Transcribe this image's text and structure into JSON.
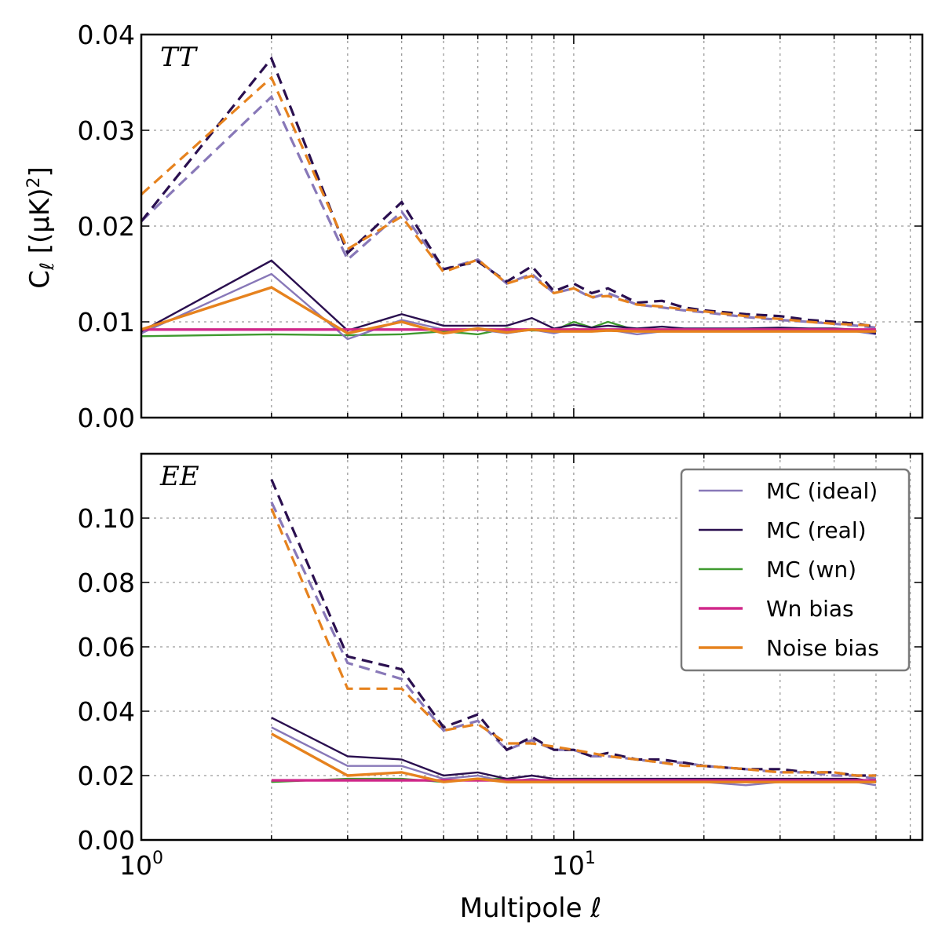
{
  "chart_data": [
    {
      "type": "line",
      "panel_label": "TT",
      "xlabel": "",
      "ylabel": "C_ℓ [(μK)²]",
      "xscale": "log",
      "xlim": [
        1,
        64
      ],
      "ylim": [
        0,
        0.04
      ],
      "yticks": [
        "0.00",
        "0.01",
        "0.02",
        "0.03",
        "0.04"
      ],
      "grid": true,
      "series": [
        {
          "key": "mc_ideal_mean",
          "x": [
            1,
            2,
            3,
            4,
            5,
            6,
            7,
            8,
            9,
            10,
            11,
            12,
            14,
            16,
            18,
            20,
            25,
            30,
            35,
            40,
            45,
            50
          ],
          "values": [
            0.0205,
            0.0335,
            0.0165,
            0.0215,
            0.0155,
            0.0165,
            0.014,
            0.015,
            0.013,
            0.0135,
            0.0125,
            0.013,
            0.0118,
            0.0115,
            0.0112,
            0.011,
            0.0105,
            0.0102,
            0.01,
            0.0098,
            0.0096,
            0.0094
          ]
        },
        {
          "key": "mc_real_mean",
          "x": [
            1,
            2,
            3,
            4,
            5,
            6,
            7,
            8,
            9,
            10,
            11,
            12,
            14,
            16,
            18,
            20,
            25,
            30,
            35,
            40,
            45,
            50
          ],
          "values": [
            0.0205,
            0.0375,
            0.0172,
            0.0225,
            0.0155,
            0.0163,
            0.0142,
            0.0158,
            0.0132,
            0.014,
            0.013,
            0.0135,
            0.012,
            0.0122,
            0.0115,
            0.0112,
            0.0108,
            0.0106,
            0.0102,
            0.01,
            0.0098,
            0.0095
          ]
        },
        {
          "key": "noise_mean",
          "x": [
            1,
            2,
            3,
            4,
            5,
            6,
            7,
            8,
            9,
            10,
            11,
            12,
            14,
            16,
            18,
            20,
            25,
            30,
            35,
            40,
            45,
            50
          ],
          "values": [
            0.0233,
            0.0355,
            0.0176,
            0.021,
            0.0152,
            0.0165,
            0.014,
            0.0148,
            0.013,
            0.0135,
            0.0126,
            0.0127,
            0.0118,
            0.0116,
            0.0113,
            0.0111,
            0.0106,
            0.0103,
            0.01,
            0.0098,
            0.0097,
            0.0096
          ]
        },
        {
          "key": "mc_ideal",
          "x": [
            1,
            2,
            3,
            4,
            5,
            6,
            7,
            8,
            9,
            10,
            11,
            12,
            14,
            16,
            18,
            20,
            25,
            30,
            35,
            40,
            45,
            50
          ],
          "values": [
            0.0088,
            0.015,
            0.0082,
            0.0102,
            0.0092,
            0.0092,
            0.0088,
            0.0092,
            0.0088,
            0.0093,
            0.009,
            0.0092,
            0.0087,
            0.009,
            0.009,
            0.0091,
            0.009,
            0.0092,
            0.009,
            0.0091,
            0.009,
            0.0087
          ]
        },
        {
          "key": "mc_real",
          "x": [
            1,
            2,
            3,
            4,
            5,
            6,
            7,
            8,
            9,
            10,
            11,
            12,
            14,
            16,
            18,
            20,
            25,
            30,
            35,
            40,
            45,
            50
          ],
          "values": [
            0.009,
            0.0164,
            0.0091,
            0.0108,
            0.0096,
            0.0096,
            0.0096,
            0.0104,
            0.0093,
            0.0097,
            0.0094,
            0.0096,
            0.0093,
            0.0095,
            0.0093,
            0.0093,
            0.0093,
            0.0094,
            0.0093,
            0.0093,
            0.0092,
            0.0088
          ]
        },
        {
          "key": "mc_wn",
          "x": [
            1,
            2,
            3,
            4,
            5,
            6,
            7,
            8,
            9,
            10,
            11,
            12,
            14,
            16,
            18,
            20,
            25,
            30,
            35,
            40,
            45,
            50
          ],
          "values": [
            0.0085,
            0.0087,
            0.0086,
            0.0087,
            0.009,
            0.0087,
            0.0093,
            0.0091,
            0.0091,
            0.01,
            0.0094,
            0.01,
            0.0091,
            0.0092,
            0.0091,
            0.0092,
            0.0091,
            0.0091,
            0.0091,
            0.0091,
            0.009,
            0.0089
          ]
        },
        {
          "key": "wn_bias",
          "x": [
            1,
            50
          ],
          "values": [
            0.0092,
            0.0092
          ]
        },
        {
          "key": "noise_bias",
          "x": [
            1,
            2,
            3,
            4,
            5,
            6,
            7,
            8,
            9,
            10,
            11,
            12,
            14,
            16,
            18,
            20,
            25,
            30,
            35,
            40,
            45,
            50
          ],
          "values": [
            0.0092,
            0.0136,
            0.0088,
            0.01,
            0.0088,
            0.0093,
            0.0089,
            0.0092,
            0.009,
            0.009,
            0.009,
            0.0091,
            0.009,
            0.009,
            0.009,
            0.009,
            0.009,
            0.009,
            0.009,
            0.009,
            0.009,
            0.009
          ]
        }
      ]
    },
    {
      "type": "line",
      "panel_label": "EE",
      "xlabel": "Multipole ℓ",
      "ylabel": "",
      "xscale": "log",
      "xlim": [
        1,
        64
      ],
      "ylim": [
        0,
        0.12
      ],
      "yticks": [
        "0.00",
        "0.02",
        "0.04",
        "0.06",
        "0.08",
        "0.10"
      ],
      "xticks": [
        "10⁰",
        "10¹"
      ],
      "grid": true,
      "series": [
        {
          "key": "mc_ideal_mean",
          "x": [
            2,
            3,
            4,
            5,
            6,
            7,
            8,
            9,
            10,
            11,
            12,
            14,
            16,
            18,
            20,
            25,
            30,
            35,
            40,
            45,
            50
          ],
          "values": [
            0.105,
            0.055,
            0.05,
            0.034,
            0.037,
            0.028,
            0.031,
            0.028,
            0.028,
            0.026,
            0.026,
            0.025,
            0.024,
            0.024,
            0.023,
            0.022,
            0.021,
            0.021,
            0.02,
            0.02,
            0.019
          ]
        },
        {
          "key": "mc_real_mean",
          "x": [
            2,
            3,
            4,
            5,
            6,
            7,
            8,
            9,
            10,
            11,
            12,
            14,
            16,
            18,
            20,
            25,
            30,
            35,
            40,
            45,
            50
          ],
          "values": [
            0.112,
            0.057,
            0.053,
            0.035,
            0.039,
            0.028,
            0.032,
            0.028,
            0.028,
            0.026,
            0.027,
            0.025,
            0.025,
            0.024,
            0.023,
            0.022,
            0.022,
            0.021,
            0.021,
            0.02,
            0.02
          ]
        },
        {
          "key": "noise_mean",
          "x": [
            2,
            3,
            4,
            5,
            6,
            7,
            8,
            9,
            10,
            11,
            12,
            14,
            16,
            18,
            20,
            25,
            30,
            35,
            40,
            45,
            50
          ],
          "values": [
            0.103,
            0.047,
            0.047,
            0.034,
            0.036,
            0.03,
            0.03,
            0.029,
            0.028,
            0.027,
            0.026,
            0.025,
            0.024,
            0.023,
            0.023,
            0.022,
            0.021,
            0.021,
            0.021,
            0.02,
            0.02
          ]
        },
        {
          "key": "mc_ideal",
          "x": [
            2,
            3,
            4,
            5,
            6,
            7,
            8,
            9,
            10,
            11,
            12,
            14,
            16,
            18,
            20,
            25,
            30,
            35,
            40,
            45,
            50
          ],
          "values": [
            0.035,
            0.023,
            0.023,
            0.019,
            0.02,
            0.018,
            0.019,
            0.018,
            0.019,
            0.018,
            0.019,
            0.018,
            0.018,
            0.018,
            0.018,
            0.017,
            0.018,
            0.018,
            0.018,
            0.018,
            0.017
          ]
        },
        {
          "key": "mc_real",
          "x": [
            2,
            3,
            4,
            5,
            6,
            7,
            8,
            9,
            10,
            11,
            12,
            14,
            16,
            18,
            20,
            25,
            30,
            35,
            40,
            45,
            50
          ],
          "values": [
            0.038,
            0.026,
            0.025,
            0.02,
            0.021,
            0.019,
            0.02,
            0.019,
            0.019,
            0.019,
            0.019,
            0.019,
            0.019,
            0.019,
            0.019,
            0.019,
            0.019,
            0.019,
            0.019,
            0.019,
            0.018
          ]
        },
        {
          "key": "mc_wn",
          "x": [
            2,
            3,
            4,
            5,
            6,
            7,
            8,
            9,
            10,
            11,
            12,
            14,
            16,
            18,
            20,
            25,
            30,
            35,
            40,
            45,
            50
          ],
          "values": [
            0.018,
            0.019,
            0.019,
            0.018,
            0.019,
            0.019,
            0.018,
            0.018,
            0.019,
            0.019,
            0.018,
            0.018,
            0.019,
            0.018,
            0.018,
            0.018,
            0.018,
            0.019,
            0.018,
            0.018,
            0.018
          ]
        },
        {
          "key": "wn_bias",
          "x": [
            2,
            50
          ],
          "values": [
            0.0185,
            0.0185
          ]
        },
        {
          "key": "noise_bias",
          "x": [
            2,
            3,
            4,
            5,
            6,
            7,
            8,
            9,
            10,
            11,
            12,
            14,
            16,
            18,
            20,
            25,
            30,
            35,
            40,
            45,
            50
          ],
          "values": [
            0.033,
            0.02,
            0.021,
            0.018,
            0.019,
            0.018,
            0.018,
            0.018,
            0.018,
            0.018,
            0.018,
            0.018,
            0.018,
            0.018,
            0.018,
            0.018,
            0.018,
            0.018,
            0.018,
            0.018,
            0.018
          ]
        }
      ]
    }
  ],
  "legend": {
    "position": "upper-right of EE panel",
    "entries": [
      {
        "key": "mc_ideal",
        "label": "MC (ideal)"
      },
      {
        "key": "mc_real",
        "label": "MC (real)"
      },
      {
        "key": "mc_wn",
        "label": "MC (wn)"
      },
      {
        "key": "wn_bias",
        "label": "Wn bias"
      },
      {
        "key": "noise_bias",
        "label": "Noise bias"
      }
    ]
  },
  "colors": {
    "mc_ideal": "#8878b8",
    "mc_real": "#2a0f4f",
    "mc_wn": "#3f9a2f",
    "wn_bias": "#d0288a",
    "noise_bias": "#e6821e",
    "mc_ideal_mean": "#8878b8",
    "mc_real_mean": "#2a0f4f",
    "noise_mean": "#e6821e"
  }
}
